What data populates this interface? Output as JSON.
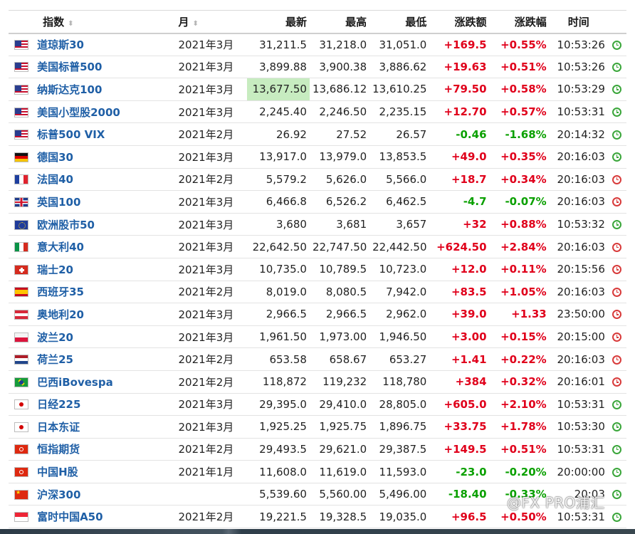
{
  "header": {
    "name": "指数",
    "month": "月",
    "last": "最新",
    "high": "最高",
    "low": "最低",
    "change": "涨跌额",
    "change_pct": "涨跌幅",
    "time": "时间",
    "sort_glyph": "⬍"
  },
  "rows": [
    {
      "flag": "us",
      "name": "道琼斯30",
      "month": "2021年3月",
      "last": "31,211.5",
      "high": "31,218.0",
      "low": "31,051.0",
      "change": "+169.5",
      "change_pct": "+0.55%",
      "time": "10:53:26",
      "status": "green"
    },
    {
      "flag": "us",
      "name": "美国标普500",
      "month": "2021年3月",
      "last": "3,899.88",
      "high": "3,900.38",
      "low": "3,886.62",
      "change": "+19.63",
      "change_pct": "+0.51%",
      "time": "10:53:26",
      "status": "green"
    },
    {
      "flag": "us",
      "name": "纳斯达克100",
      "month": "2021年3月",
      "last": "13,677.50",
      "high": "13,686.12",
      "low": "13,610.25",
      "change": "+79.50",
      "change_pct": "+0.58%",
      "time": "10:53:29",
      "status": "green",
      "highlight": true
    },
    {
      "flag": "us",
      "name": "美国小型股2000",
      "month": "2021年3月",
      "last": "2,245.40",
      "high": "2,246.50",
      "low": "2,235.15",
      "change": "+12.70",
      "change_pct": "+0.57%",
      "time": "10:53:31",
      "status": "green"
    },
    {
      "flag": "us",
      "name": "标普500 VIX",
      "month": "2021年2月",
      "last": "26.92",
      "high": "27.52",
      "low": "26.57",
      "change": "-0.46",
      "change_pct": "-1.68%",
      "time": "20:14:32",
      "status": "green"
    },
    {
      "flag": "de",
      "name": "德国30",
      "month": "2021年3月",
      "last": "13,917.0",
      "high": "13,979.0",
      "low": "13,853.5",
      "change": "+49.0",
      "change_pct": "+0.35%",
      "time": "20:16:03",
      "status": "green"
    },
    {
      "flag": "fr",
      "name": "法国40",
      "month": "2021年2月",
      "last": "5,579.2",
      "high": "5,626.0",
      "low": "5,566.0",
      "change": "+18.7",
      "change_pct": "+0.34%",
      "time": "20:16:03",
      "status": "red"
    },
    {
      "flag": "gb",
      "name": "英国100",
      "month": "2021年3月",
      "last": "6,466.8",
      "high": "6,526.2",
      "low": "6,462.5",
      "change": "-4.7",
      "change_pct": "-0.07%",
      "time": "20:16:03",
      "status": "red"
    },
    {
      "flag": "eu",
      "name": "欧洲股市50",
      "month": "2021年3月",
      "last": "3,680",
      "high": "3,681",
      "low": "3,657",
      "change": "+32",
      "change_pct": "+0.88%",
      "time": "10:53:32",
      "status": "green"
    },
    {
      "flag": "it",
      "name": "意大利40",
      "month": "2021年3月",
      "last": "22,642.50",
      "high": "22,747.50",
      "low": "22,442.50",
      "change": "+624.50",
      "change_pct": "+2.84%",
      "time": "20:16:03",
      "status": "red"
    },
    {
      "flag": "ch",
      "name": "瑞士20",
      "month": "2021年3月",
      "last": "10,735.0",
      "high": "10,789.5",
      "low": "10,723.0",
      "change": "+12.0",
      "change_pct": "+0.11%",
      "time": "20:15:56",
      "status": "red"
    },
    {
      "flag": "es",
      "name": "西班牙35",
      "month": "2021年2月",
      "last": "8,019.0",
      "high": "8,080.5",
      "low": "7,942.0",
      "change": "+83.5",
      "change_pct": "+1.05%",
      "time": "20:16:03",
      "status": "red"
    },
    {
      "flag": "at",
      "name": "奥地利20",
      "month": "2021年3月",
      "last": "2,966.5",
      "high": "2,966.5",
      "low": "2,962.0",
      "change": "+39.0",
      "change_pct": "+1.33",
      "time": "23:50:00",
      "status": "red"
    },
    {
      "flag": "pl",
      "name": "波兰20",
      "month": "2021年3月",
      "last": "1,961.50",
      "high": "1,973.00",
      "low": "1,946.50",
      "change": "+3.00",
      "change_pct": "+0.15%",
      "time": "20:15:00",
      "status": "red"
    },
    {
      "flag": "nl",
      "name": "荷兰25",
      "month": "2021年2月",
      "last": "653.58",
      "high": "658.67",
      "low": "653.27",
      "change": "+1.41",
      "change_pct": "+0.22%",
      "time": "20:16:03",
      "status": "red"
    },
    {
      "flag": "br",
      "name": "巴西iBovespa",
      "month": "2021年2月",
      "last": "118,872",
      "high": "119,232",
      "low": "118,780",
      "change": "+384",
      "change_pct": "+0.32%",
      "time": "20:16:01",
      "status": "red"
    },
    {
      "flag": "jp",
      "name": "日经225",
      "month": "2021年3月",
      "last": "29,395.0",
      "high": "29,410.0",
      "low": "28,805.0",
      "change": "+605.0",
      "change_pct": "+2.10%",
      "time": "10:53:31",
      "status": "green"
    },
    {
      "flag": "jp",
      "name": "日本东证",
      "month": "2021年3月",
      "last": "1,925.25",
      "high": "1,925.75",
      "low": "1,896.75",
      "change": "+33.75",
      "change_pct": "+1.78%",
      "time": "10:53:30",
      "status": "green"
    },
    {
      "flag": "hk",
      "name": "恒指期货",
      "month": "2021年2月",
      "last": "29,493.5",
      "high": "29,621.0",
      "low": "29,387.5",
      "change": "+149.5",
      "change_pct": "+0.51%",
      "time": "10:53:31",
      "status": "green"
    },
    {
      "flag": "hk",
      "name": "中国H股",
      "month": "2021年1月",
      "last": "11,608.0",
      "high": "11,619.0",
      "low": "11,593.0",
      "change": "-23.0",
      "change_pct": "-0.20%",
      "time": "20:00:00",
      "status": "green"
    },
    {
      "flag": "cn",
      "name": "沪深300",
      "month": "",
      "last": "5,539.60",
      "high": "5,560.00",
      "low": "5,496.00",
      "change": "-18.40",
      "change_pct": "-0.33%",
      "time": "20:03",
      "status": "green"
    },
    {
      "flag": "sg",
      "name": "富时中国A50",
      "month": "2021年2月",
      "last": "19,221.5",
      "high": "19,328.5",
      "low": "19,035.0",
      "change": "+96.5",
      "change_pct": "+0.50%",
      "time": "10:53:31",
      "status": "green"
    }
  ],
  "watermark": "@FX PRO浦汇",
  "colors": {
    "positive": "#e0001b",
    "negative": "#0aa000",
    "link": "#1f5fa6",
    "highlight": "#c7ecc0"
  }
}
